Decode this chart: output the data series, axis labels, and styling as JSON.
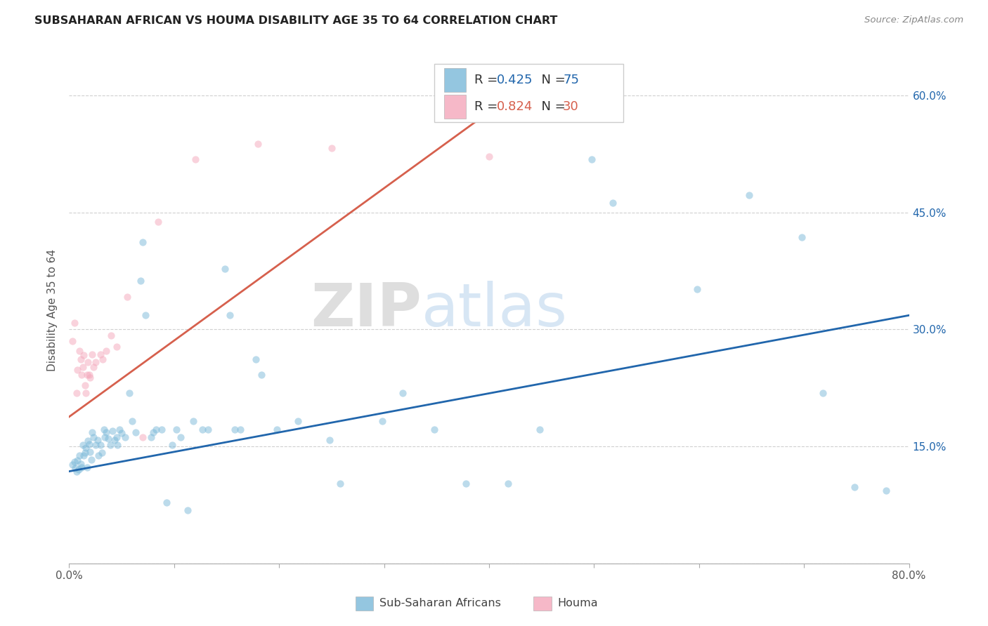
{
  "title": "SUBSAHARAN AFRICAN VS HOUMA DISABILITY AGE 35 TO 64 CORRELATION CHART",
  "source": "Source: ZipAtlas.com",
  "ylabel": "Disability Age 35 to 64",
  "xlim": [
    0.0,
    0.8
  ],
  "ylim": [
    0.0,
    0.65
  ],
  "xticks": [
    0.0,
    0.1,
    0.2,
    0.3,
    0.4,
    0.5,
    0.6,
    0.7,
    0.8
  ],
  "xticklabels": [
    "0.0%",
    "",
    "",
    "",
    "",
    "",
    "",
    "",
    "80.0%"
  ],
  "yticks": [
    0.0,
    0.15,
    0.3,
    0.45,
    0.6
  ],
  "yticklabels_right": [
    "",
    "15.0%",
    "30.0%",
    "45.0%",
    "60.0%"
  ],
  "watermark": "ZIPatlas",
  "blue_scatter": [
    [
      0.003,
      0.127
    ],
    [
      0.005,
      0.13
    ],
    [
      0.006,
      0.122
    ],
    [
      0.007,
      0.118
    ],
    [
      0.008,
      0.132
    ],
    [
      0.009,
      0.12
    ],
    [
      0.01,
      0.138
    ],
    [
      0.011,
      0.128
    ],
    [
      0.012,
      0.123
    ],
    [
      0.013,
      0.152
    ],
    [
      0.014,
      0.138
    ],
    [
      0.015,
      0.142
    ],
    [
      0.016,
      0.148
    ],
    [
      0.017,
      0.123
    ],
    [
      0.018,
      0.157
    ],
    [
      0.019,
      0.153
    ],
    [
      0.02,
      0.143
    ],
    [
      0.021,
      0.133
    ],
    [
      0.022,
      0.168
    ],
    [
      0.023,
      0.162
    ],
    [
      0.025,
      0.152
    ],
    [
      0.027,
      0.158
    ],
    [
      0.028,
      0.138
    ],
    [
      0.03,
      0.152
    ],
    [
      0.031,
      0.142
    ],
    [
      0.033,
      0.172
    ],
    [
      0.034,
      0.162
    ],
    [
      0.035,
      0.168
    ],
    [
      0.037,
      0.16
    ],
    [
      0.039,
      0.152
    ],
    [
      0.041,
      0.17
    ],
    [
      0.043,
      0.158
    ],
    [
      0.045,
      0.162
    ],
    [
      0.046,
      0.152
    ],
    [
      0.048,
      0.172
    ],
    [
      0.05,
      0.167
    ],
    [
      0.053,
      0.162
    ],
    [
      0.057,
      0.218
    ],
    [
      0.06,
      0.182
    ],
    [
      0.063,
      0.168
    ],
    [
      0.068,
      0.362
    ],
    [
      0.07,
      0.412
    ],
    [
      0.073,
      0.318
    ],
    [
      0.078,
      0.162
    ],
    [
      0.08,
      0.168
    ],
    [
      0.083,
      0.172
    ],
    [
      0.088,
      0.172
    ],
    [
      0.093,
      0.078
    ],
    [
      0.098,
      0.152
    ],
    [
      0.102,
      0.172
    ],
    [
      0.106,
      0.162
    ],
    [
      0.113,
      0.068
    ],
    [
      0.118,
      0.182
    ],
    [
      0.127,
      0.172
    ],
    [
      0.132,
      0.172
    ],
    [
      0.148,
      0.378
    ],
    [
      0.153,
      0.318
    ],
    [
      0.158,
      0.172
    ],
    [
      0.163,
      0.172
    ],
    [
      0.178,
      0.262
    ],
    [
      0.183,
      0.242
    ],
    [
      0.198,
      0.172
    ],
    [
      0.218,
      0.182
    ],
    [
      0.248,
      0.158
    ],
    [
      0.258,
      0.102
    ],
    [
      0.298,
      0.182
    ],
    [
      0.318,
      0.218
    ],
    [
      0.348,
      0.172
    ],
    [
      0.378,
      0.102
    ],
    [
      0.418,
      0.102
    ],
    [
      0.448,
      0.172
    ],
    [
      0.498,
      0.518
    ],
    [
      0.518,
      0.462
    ],
    [
      0.598,
      0.352
    ],
    [
      0.648,
      0.472
    ],
    [
      0.698,
      0.418
    ],
    [
      0.718,
      0.218
    ],
    [
      0.748,
      0.098
    ],
    [
      0.778,
      0.093
    ]
  ],
  "blue_line_x": [
    0.0,
    0.8
  ],
  "blue_line_y": [
    0.118,
    0.318
  ],
  "pink_scatter": [
    [
      0.003,
      0.285
    ],
    [
      0.005,
      0.308
    ],
    [
      0.007,
      0.218
    ],
    [
      0.008,
      0.248
    ],
    [
      0.01,
      0.272
    ],
    [
      0.011,
      0.262
    ],
    [
      0.012,
      0.242
    ],
    [
      0.013,
      0.252
    ],
    [
      0.014,
      0.267
    ],
    [
      0.015,
      0.228
    ],
    [
      0.016,
      0.218
    ],
    [
      0.017,
      0.242
    ],
    [
      0.018,
      0.258
    ],
    [
      0.019,
      0.242
    ],
    [
      0.02,
      0.238
    ],
    [
      0.022,
      0.268
    ],
    [
      0.023,
      0.252
    ],
    [
      0.025,
      0.258
    ],
    [
      0.03,
      0.268
    ],
    [
      0.032,
      0.262
    ],
    [
      0.035,
      0.272
    ],
    [
      0.04,
      0.292
    ],
    [
      0.045,
      0.278
    ],
    [
      0.055,
      0.342
    ],
    [
      0.07,
      0.162
    ],
    [
      0.085,
      0.438
    ],
    [
      0.12,
      0.518
    ],
    [
      0.18,
      0.538
    ],
    [
      0.25,
      0.532
    ],
    [
      0.4,
      0.522
    ]
  ],
  "pink_line_x": [
    0.0,
    0.43
  ],
  "pink_line_y": [
    0.188,
    0.608
  ],
  "scatter_size": 55,
  "scatter_alpha": 0.5,
  "blue_color": "#7ab8d9",
  "pink_color": "#f4a7bb",
  "blue_line_color": "#2166ac",
  "pink_line_color": "#d6604d",
  "grid_color": "#d0d0d0",
  "background_color": "#ffffff",
  "legend_box_color": "#ffffff",
  "legend_edge_color": "#cccccc",
  "r_n_text_color": "#1a1a1a",
  "blue_value_color": "#2166ac",
  "pink_value_color": "#d6604d"
}
